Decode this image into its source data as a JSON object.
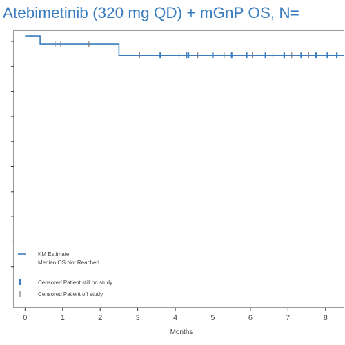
{
  "chart_data": {
    "type": "line",
    "title": "Atebimetinib (320 mg QD) + mGnP OS, N=",
    "xlabel": "Months",
    "ylabel": "",
    "xlim": [
      -0.3,
      8.5
    ],
    "ylim": [
      0,
      1.0
    ],
    "x_ticks": [
      0,
      1,
      2,
      3,
      4,
      5,
      6,
      7,
      8
    ],
    "y_tick_count": 10,
    "grid": false,
    "legend_position": "bottom-left",
    "colors": {
      "km_line": "#3a7dc0",
      "censored_on_study": "#3a7dc0",
      "censored_off_study": "#7a7a7a",
      "title": "#3a7dc0"
    },
    "series": [
      {
        "name": "KM Estimate",
        "step_x": [
          0,
          0.4,
          2.5,
          8.5
        ],
        "step_y": [
          0.98,
          0.95,
          0.91,
          0.91
        ]
      }
    ],
    "legend_note": "Median OS Not Reached",
    "censored_on_study": {
      "name": "Censored Patient still on study",
      "points": [
        {
          "x": 3.6,
          "y": 0.91
        },
        {
          "x": 4.3,
          "y": 0.91
        },
        {
          "x": 4.35,
          "y": 0.91
        },
        {
          "x": 5.0,
          "y": 0.91
        },
        {
          "x": 5.5,
          "y": 0.91
        },
        {
          "x": 5.9,
          "y": 0.91
        },
        {
          "x": 6.4,
          "y": 0.91
        },
        {
          "x": 6.9,
          "y": 0.91
        },
        {
          "x": 7.35,
          "y": 0.91
        },
        {
          "x": 7.75,
          "y": 0.91
        },
        {
          "x": 8.05,
          "y": 0.91
        },
        {
          "x": 8.3,
          "y": 0.91
        }
      ]
    },
    "censored_off_study": {
      "name": "Censored Patient off study",
      "points": [
        {
          "x": 0.8,
          "y": 0.95
        },
        {
          "x": 0.95,
          "y": 0.95
        },
        {
          "x": 1.7,
          "y": 0.95
        },
        {
          "x": 3.05,
          "y": 0.91
        },
        {
          "x": 4.1,
          "y": 0.91
        },
        {
          "x": 4.6,
          "y": 0.91
        },
        {
          "x": 5.3,
          "y": 0.91
        },
        {
          "x": 6.05,
          "y": 0.91
        },
        {
          "x": 6.6,
          "y": 0.91
        },
        {
          "x": 7.1,
          "y": 0.91
        },
        {
          "x": 7.55,
          "y": 0.91
        }
      ]
    }
  }
}
